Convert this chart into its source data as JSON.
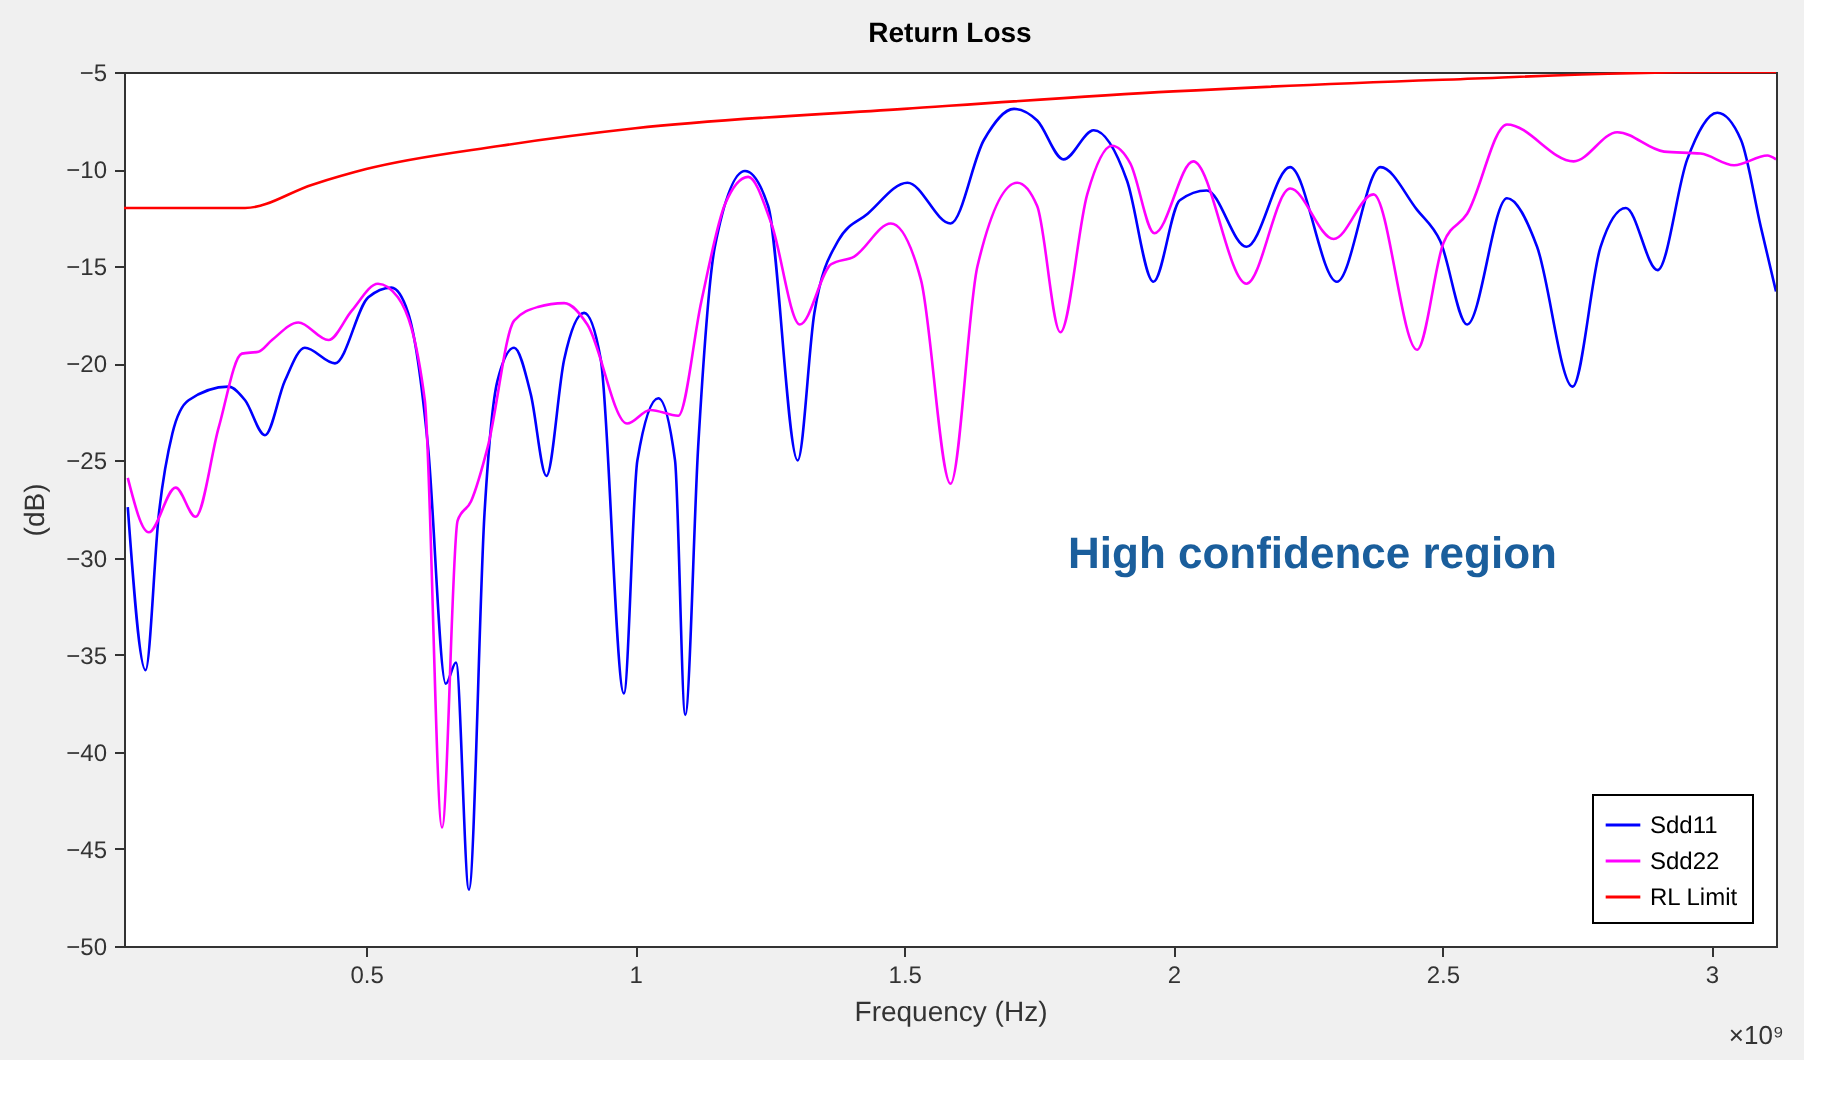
{
  "chart_data": {
    "type": "line",
    "title": "Return Loss",
    "xlabel": "Frequency (Hz)",
    "ylabel": "(dB)",
    "annotations": [
      "High confidence region",
      "×10⁹"
    ],
    "xlim": [
      0.05,
      3.12
    ],
    "xticks": [
      0.5,
      1,
      1.5,
      2,
      2.5,
      3
    ],
    "ylim": [
      -50,
      -5
    ],
    "yticks": [
      -50,
      -45,
      -40,
      -35,
      -30,
      -25,
      -20,
      -15,
      -10,
      -5
    ],
    "grid": false,
    "legend": "bottom right",
    "line_style": "solid",
    "marker": "none",
    "series": [
      {
        "name": "Sdd11",
        "color": "#0000ff",
        "x": [
          0.057,
          0.09,
          0.115,
          0.14,
          0.17,
          0.244,
          0.275,
          0.312,
          0.349,
          0.386,
          0.442,
          0.504,
          0.547,
          0.578,
          0.615,
          0.648,
          0.667,
          0.691,
          0.72,
          0.744,
          0.775,
          0.806,
          0.835,
          0.868,
          0.905,
          0.936,
          0.979,
          1.004,
          1.043,
          1.074,
          1.093,
          1.117,
          1.148,
          1.204,
          1.247,
          1.302,
          1.333,
          1.377,
          1.432,
          1.506,
          1.586,
          1.648,
          1.704,
          1.747,
          1.796,
          1.852,
          1.914,
          1.963,
          2.012,
          2.062,
          2.136,
          2.217,
          2.304,
          2.385,
          2.453,
          2.496,
          2.546,
          2.62,
          2.676,
          2.742,
          2.794,
          2.841,
          2.9,
          2.955,
          3.011,
          3.055,
          3.092,
          3.12
        ],
        "values": [
          -27.4,
          -35.8,
          -27.7,
          -23.6,
          -21.9,
          -21.2,
          -21.9,
          -23.7,
          -20.9,
          -19.2,
          -20.0,
          -16.6,
          -16.1,
          -17.4,
          -24.3,
          -36.5,
          -35.4,
          -47.1,
          -27.7,
          -20.9,
          -19.2,
          -21.6,
          -25.8,
          -19.8,
          -17.4,
          -19.8,
          -37.0,
          -25.0,
          -21.8,
          -25.0,
          -38.1,
          -24.3,
          -14.0,
          -10.1,
          -11.9,
          -25.0,
          -17.4,
          -13.7,
          -12.3,
          -10.7,
          -12.8,
          -8.5,
          -6.9,
          -7.5,
          -9.5,
          -8.0,
          -10.6,
          -15.8,
          -11.6,
          -11.1,
          -14.0,
          -9.9,
          -15.8,
          -9.9,
          -12.1,
          -13.7,
          -18.0,
          -11.5,
          -14.0,
          -21.2,
          -14.0,
          -12.0,
          -15.2,
          -9.5,
          -7.1,
          -8.5,
          -13.0,
          -16.3
        ]
      },
      {
        "name": "Sdd22",
        "color": "#ff00ff",
        "x": [
          0.057,
          0.096,
          0.146,
          0.183,
          0.226,
          0.269,
          0.3,
          0.325,
          0.374,
          0.43,
          0.473,
          0.522,
          0.559,
          0.609,
          0.641,
          0.67,
          0.695,
          0.726,
          0.775,
          0.819,
          0.868,
          0.911,
          0.985,
          1.028,
          1.08,
          1.123,
          1.167,
          1.21,
          1.253,
          1.306,
          1.364,
          1.407,
          1.475,
          1.531,
          1.586,
          1.636,
          1.71,
          1.747,
          1.79,
          1.84,
          1.886,
          1.92,
          1.965,
          2.037,
          2.136,
          2.217,
          2.298,
          2.372,
          2.453,
          2.502,
          2.546,
          2.62,
          2.744,
          2.825,
          2.912,
          2.98,
          3.042,
          3.104,
          3.12
        ],
        "values": [
          -25.9,
          -28.7,
          -26.4,
          -27.9,
          -23.3,
          -19.5,
          -19.4,
          -18.8,
          -17.9,
          -18.8,
          -17.3,
          -15.9,
          -16.6,
          -21.9,
          -43.9,
          -28.1,
          -27.1,
          -24.3,
          -17.8,
          -17.1,
          -16.9,
          -18.0,
          -23.1,
          -22.4,
          -22.7,
          -16.8,
          -11.8,
          -10.4,
          -12.8,
          -18.0,
          -14.9,
          -14.5,
          -12.8,
          -15.7,
          -26.2,
          -15.0,
          -10.7,
          -11.9,
          -18.4,
          -11.3,
          -8.8,
          -9.7,
          -13.3,
          -9.6,
          -15.9,
          -11.0,
          -13.6,
          -11.3,
          -19.3,
          -13.8,
          -12.3,
          -7.7,
          -9.6,
          -8.1,
          -9.1,
          -9.2,
          -9.8,
          -9.3,
          -9.5
        ]
      },
      {
        "name": "RL Limit",
        "color": "#ff0000",
        "x": [
          0.05,
          0.275,
          0.4,
          0.5,
          0.75,
          1.0,
          1.5,
          2.0,
          2.5,
          3.0,
          3.12
        ],
        "values": [
          -12,
          -12,
          -10.8,
          -10.0,
          -8.8,
          -7.9,
          -6.9,
          -6.0,
          -5.4,
          -5.0,
          -5.0
        ]
      }
    ]
  }
}
